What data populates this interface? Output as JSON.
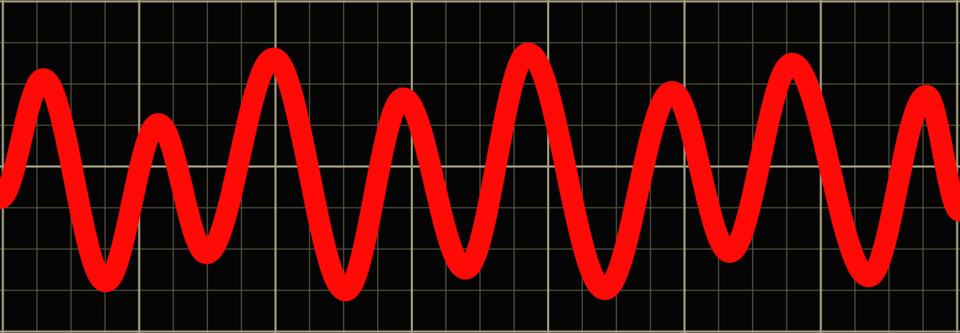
{
  "scene": {
    "subject": "oscilloscope-waveform",
    "colors": {
      "paper": "#f3d9a3",
      "screen": "#050505",
      "minor_grid": "#56543f",
      "major_grid": "#a29d7f",
      "trace": "#ff0a06"
    },
    "grid": {
      "major_columns": 7,
      "major_rows": 2,
      "minor_per_major": 4
    },
    "trace_extrema": [
      {
        "t": 0.0,
        "v": -0.25
      },
      {
        "t": 0.045,
        "v": 0.68
      },
      {
        "t": 0.11,
        "v": -0.9
      },
      {
        "t": 0.165,
        "v": 0.33
      },
      {
        "t": 0.215,
        "v": -0.68
      },
      {
        "t": 0.285,
        "v": 0.84
      },
      {
        "t": 0.36,
        "v": -0.97
      },
      {
        "t": 0.42,
        "v": 0.53
      },
      {
        "t": 0.485,
        "v": -0.8
      },
      {
        "t": 0.55,
        "v": 0.88
      },
      {
        "t": 0.63,
        "v": -0.96
      },
      {
        "t": 0.7,
        "v": 0.58
      },
      {
        "t": 0.76,
        "v": -0.67
      },
      {
        "t": 0.825,
        "v": 0.8
      },
      {
        "t": 0.905,
        "v": -0.86
      },
      {
        "t": 0.965,
        "v": 0.55
      },
      {
        "t": 1.0,
        "v": -0.35
      }
    ]
  }
}
